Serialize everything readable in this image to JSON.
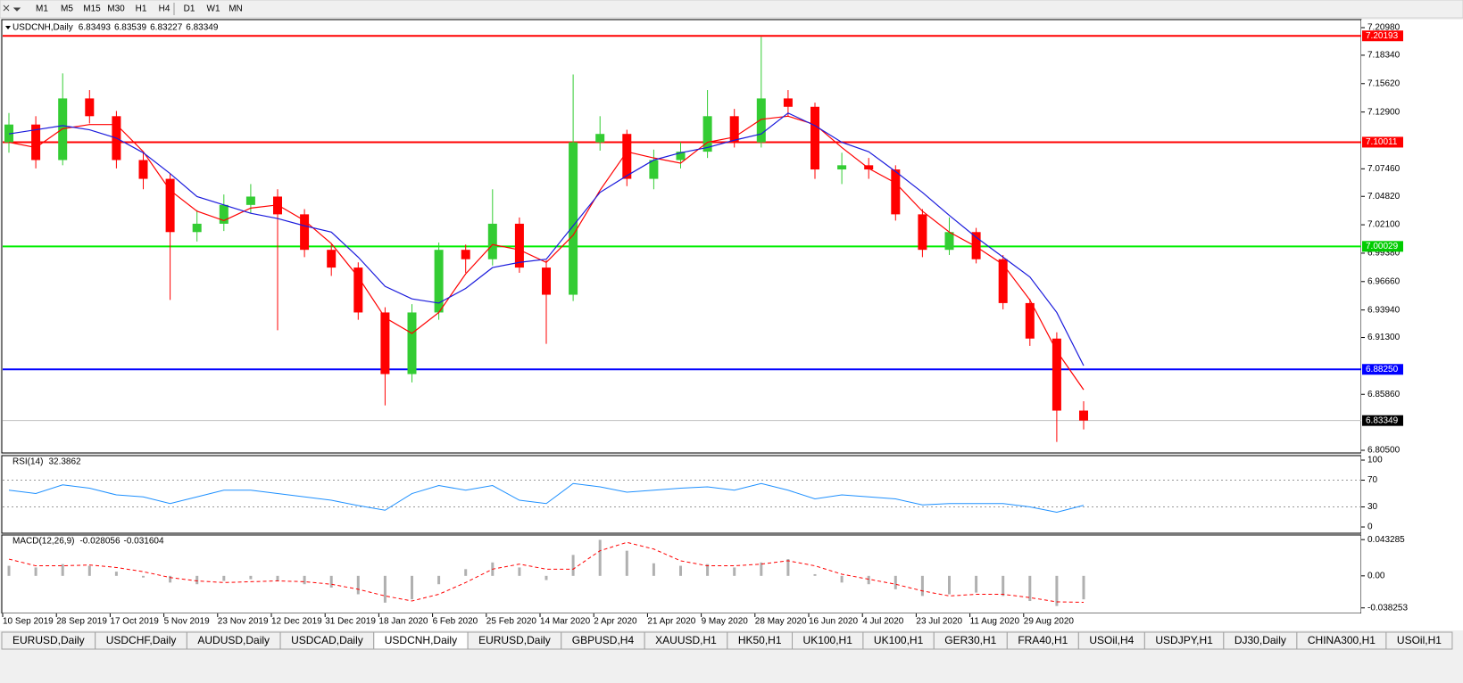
{
  "toolbar": {
    "timeframes": [
      "M1",
      "M5",
      "M15",
      "M30",
      "H1",
      "H4",
      "D1",
      "W1",
      "MN"
    ]
  },
  "tabs": [
    "EURUSD,Daily",
    "USDCHF,Daily",
    "AUDUSD,Daily",
    "USDCAD,Daily",
    "USDCNH,Daily",
    "EURUSD,Daily",
    "GBPUSD,H4",
    "XAUUSD,H1",
    "HK50,H1",
    "UK100,H1",
    "UK100,H1",
    "GER30,H1",
    "FRA40,H1",
    "USOil,H4",
    "USDJPY,H1",
    "DJ30,Daily",
    "CHINA300,H1",
    "USOil,H1"
  ],
  "chart_data": [
    {
      "type": "candlestick",
      "title": "USDCNH,Daily",
      "summary": [
        6.83493,
        6.83539,
        6.83227,
        6.83349
      ],
      "categories": [
        "10 Sep 2019",
        null,
        "28 Sep 2019",
        null,
        "17 Oct 2019",
        null,
        "5 Nov 2019",
        null,
        "23 Nov 2019",
        null,
        "12 Dec 2019",
        null,
        "31 Dec 2019",
        null,
        "18 Jan 2020",
        null,
        "6 Feb 2020",
        null,
        "25 Feb 2020",
        null,
        "14 Mar 2020",
        null,
        "2 Apr 2020",
        null,
        "21 Apr 2020",
        null,
        "9 May 2020",
        null,
        "28 May 2020",
        null,
        "16 Jun 2020",
        null,
        "4 Jul 2020",
        null,
        "23 Jul 2020",
        null,
        "11 Aug 2020",
        null,
        "29 Aug 2020",
        null,
        null
      ],
      "open": [
        7.1,
        7.117,
        7.083,
        7.142,
        7.125,
        7.083,
        7.065,
        7.014,
        7.022,
        7.04,
        7.048,
        7.031,
        6.997,
        6.98,
        6.937,
        6.878,
        6.937,
        6.997,
        6.988,
        7.022,
        6.98,
        6.954,
        7.1,
        7.108,
        7.065,
        7.083,
        7.091,
        7.125,
        7.1,
        7.142,
        7.134,
        7.074,
        7.078,
        7.074,
        7.031,
        6.997,
        7.014,
        6.988,
        6.946,
        6.912,
        6.843
      ],
      "high": [
        7.128,
        7.125,
        7.166,
        7.15,
        7.13,
        7.09,
        7.07,
        7.035,
        7.05,
        7.06,
        7.055,
        7.036,
        7.002,
        6.985,
        6.942,
        6.945,
        7.004,
        7.002,
        7.055,
        7.028,
        6.987,
        7.165,
        7.125,
        7.112,
        7.093,
        7.1,
        7.15,
        7.132,
        7.201,
        7.15,
        7.138,
        7.09,
        7.085,
        7.078,
        7.036,
        7.028,
        7.018,
        6.992,
        6.95,
        6.918,
        6.852
      ],
      "low": [
        7.09,
        7.075,
        7.078,
        7.118,
        7.075,
        7.055,
        6.949,
        7.005,
        7.015,
        7.032,
        6.92,
        6.99,
        6.972,
        6.93,
        6.848,
        6.87,
        6.93,
        6.975,
        6.982,
        6.975,
        6.907,
        6.948,
        7.092,
        7.058,
        7.055,
        7.075,
        7.085,
        7.095,
        7.095,
        7.125,
        7.065,
        7.06,
        7.065,
        7.025,
        6.99,
        6.992,
        6.984,
        6.94,
        6.905,
        6.813,
        6.825
      ],
      "close": [
        7.117,
        7.083,
        7.142,
        7.125,
        7.083,
        7.065,
        7.014,
        7.022,
        7.04,
        7.048,
        7.031,
        6.997,
        6.98,
        6.937,
        6.878,
        6.937,
        6.997,
        6.988,
        7.022,
        6.98,
        6.954,
        7.1,
        7.108,
        7.065,
        7.083,
        7.091,
        7.125,
        7.1,
        7.142,
        7.134,
        7.074,
        7.078,
        7.074,
        7.031,
        6.997,
        7.014,
        6.988,
        6.946,
        6.912,
        6.843,
        6.83349
      ],
      "up_color": "#33cc33",
      "down_color": "#ff0000",
      "lines": [
        {
          "color": "#ff0000",
          "values": [
            7.1,
            7.095,
            7.113,
            7.117,
            7.117,
            7.091,
            7.054,
            7.034,
            7.025,
            7.037,
            7.04,
            7.025,
            7.003,
            6.971,
            6.932,
            6.917,
            6.937,
            6.974,
            7.002,
            6.997,
            6.985,
            7.011,
            7.054,
            7.091,
            7.085,
            7.08,
            7.1,
            7.105,
            7.122,
            7.125,
            7.117,
            7.095,
            7.075,
            7.061,
            7.034,
            7.014,
            7.0,
            6.983,
            6.949,
            6.9,
            6.863
          ]
        },
        {
          "color": "#1a1adc",
          "values": [
            7.108,
            7.112,
            7.116,
            7.112,
            7.104,
            7.09,
            7.07,
            7.048,
            7.04,
            7.032,
            7.027,
            7.02,
            7.014,
            6.99,
            6.962,
            6.95,
            6.946,
            6.96,
            6.98,
            6.985,
            6.988,
            7.02,
            7.052,
            7.068,
            7.083,
            7.09,
            7.095,
            7.102,
            7.108,
            7.128,
            7.116,
            7.1,
            7.091,
            7.072,
            7.052,
            7.03,
            7.009,
            6.99,
            6.971,
            6.937,
            6.886
          ]
        }
      ],
      "levels": [
        {
          "value": 7.20193,
          "color": "#ff0000",
          "box_color": "#ff0000"
        },
        {
          "value": 7.10011,
          "color": "#ff0000",
          "box_color": "#ff0000"
        },
        {
          "value": 7.00029,
          "color": "#00ee00",
          "box_color": "#00cc00"
        },
        {
          "value": 6.8825,
          "label": "6.88250",
          "color": "#0000ff",
          "box_color": "#0000ff"
        },
        {
          "value": 6.83349,
          "color": "#c0c0c0",
          "box_color": "#000000"
        }
      ],
      "ylim": [
        6.8033,
        7.2175
      ],
      "yticks": [
        {
          "value": 7.2098,
          "label": "7.20980"
        },
        {
          "value": 7.1834,
          "label": "7.18340"
        },
        {
          "value": 7.1562,
          "label": "7.15620"
        },
        {
          "value": 7.129,
          "label": "7.12900"
        },
        {
          "value": 7.0746,
          "label": "7.07460"
        },
        {
          "value": 7.0482,
          "label": "7.04820"
        },
        {
          "value": 7.021,
          "label": "7.02100"
        },
        {
          "value": 6.9938,
          "label": "6.99380"
        },
        {
          "value": 6.9666,
          "label": "6.96660"
        },
        {
          "value": 6.9394,
          "label": "6.93940"
        },
        {
          "value": 6.913,
          "label": "6.91300"
        },
        {
          "value": 6.8586,
          "label": "6.85860"
        },
        {
          "value": 6.805,
          "label": "6.80500"
        }
      ]
    },
    {
      "type": "line",
      "title": "RSI(14)",
      "summary": [
        32.3862
      ],
      "color": "#1e90ff",
      "values": [
        55,
        50,
        63,
        58,
        48,
        45,
        35,
        45,
        55,
        55,
        50,
        45,
        40,
        32,
        25,
        50,
        62,
        55,
        62,
        40,
        35,
        65,
        60,
        52,
        55,
        58,
        60,
        55,
        65,
        55,
        42,
        48,
        45,
        42,
        33,
        35,
        35,
        35,
        30,
        22,
        32.3862
      ],
      "ylim": [
        -9.3,
        106.7
      ],
      "yticks": [
        100,
        70,
        30,
        0
      ],
      "grid": true
    },
    {
      "type": "macd",
      "title": "MACD(12,26,9)",
      "summary": [
        -0.028056,
        -0.031604
      ],
      "histogram": {
        "color": "#b0b0b0",
        "values": [
          0.012,
          0.01,
          0.014,
          0.012,
          0.005,
          -0.002,
          -0.008,
          -0.01,
          -0.006,
          -0.004,
          -0.006,
          -0.01,
          -0.014,
          -0.022,
          -0.032,
          -0.028,
          -0.01,
          0.008,
          0.016,
          0.01,
          -0.005,
          0.025,
          0.043,
          0.03,
          0.015,
          0.012,
          0.014,
          0.01,
          0.016,
          0.02,
          0.002,
          -0.008,
          -0.01,
          -0.016,
          -0.024,
          -0.022,
          -0.02,
          -0.024,
          -0.03,
          -0.036,
          -0.028056
        ]
      },
      "signal": {
        "color": "#ff0000",
        "values": [
          0.02,
          0.012,
          0.012,
          0.013,
          0.01,
          0.005,
          -0.002,
          -0.006,
          -0.008,
          -0.007,
          -0.006,
          -0.007,
          -0.01,
          -0.016,
          -0.024,
          -0.03,
          -0.022,
          -0.008,
          0.008,
          0.014,
          0.008,
          0.008,
          0.03,
          0.04,
          0.032,
          0.018,
          0.012,
          0.012,
          0.014,
          0.018,
          0.012,
          0.002,
          -0.004,
          -0.01,
          -0.018,
          -0.024,
          -0.022,
          -0.022,
          -0.026,
          -0.031,
          -0.031604
        ]
      },
      "ylim": [
        -0.0449,
        0.0488
      ],
      "yticks": [
        0.043285,
        {
          "value": 0,
          "label": "0.00"
        },
        -0.038253
      ]
    }
  ]
}
